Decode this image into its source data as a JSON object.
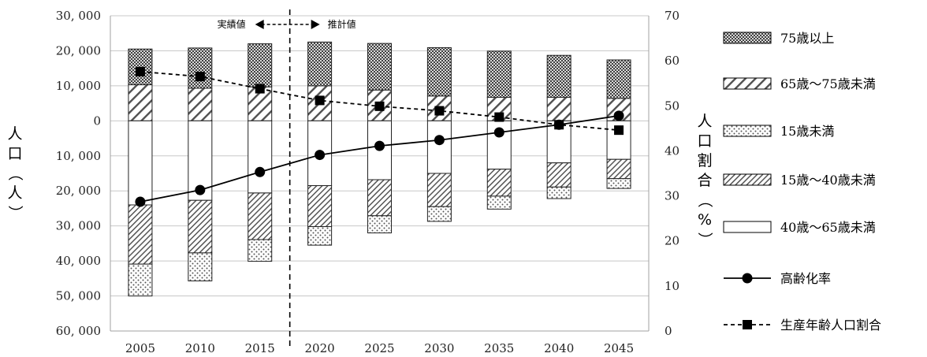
{
  "chart_data": {
    "type": "bar",
    "categories": [
      "2005",
      "2010",
      "2015",
      "2020",
      "2025",
      "2030",
      "2035",
      "2040",
      "2045"
    ],
    "left_axis": {
      "label": "人口（人）",
      "ticks": [
        {
          "value": 30000,
          "label": "30, 000"
        },
        {
          "value": 20000,
          "label": "20, 000"
        },
        {
          "value": 10000,
          "label": "10, 000"
        },
        {
          "value": 0,
          "label": "0"
        },
        {
          "value": -10000,
          "label": "10, 000"
        },
        {
          "value": -20000,
          "label": "20, 000"
        },
        {
          "value": -30000,
          "label": "30, 000"
        },
        {
          "value": -40000,
          "label": "40, 000"
        },
        {
          "value": -50000,
          "label": "50, 000"
        },
        {
          "value": -60000,
          "label": "60, 000"
        }
      ],
      "range": [
        -60000,
        30000
      ]
    },
    "right_axis": {
      "label": "人口割合（%）",
      "ticks": [
        0,
        10,
        20,
        30,
        40,
        50,
        60,
        70
      ],
      "range": [
        0,
        70
      ]
    },
    "grid": true,
    "divider": {
      "between": [
        "2015",
        "2020"
      ],
      "left_label": "実績値",
      "right_label": "推計値"
    },
    "stacks_up": [
      {
        "name": "65歳～75歳未満",
        "pattern": "hatch-wide",
        "values": [
          10300,
          9300,
          9700,
          10000,
          8800,
          7100,
          6700,
          6700,
          6400
        ]
      },
      {
        "name": "75歳以上",
        "pattern": "checker",
        "values": [
          10200,
          11500,
          12300,
          12500,
          13300,
          13800,
          13200,
          12000,
          11000
        ]
      }
    ],
    "stacks_down": [
      {
        "name": "40歳～65歳未満",
        "pattern": "white",
        "values": [
          24000,
          22700,
          20600,
          18500,
          16800,
          15000,
          13800,
          12000,
          11000
        ]
      },
      {
        "name": "15歳～40歳未満",
        "pattern": "hatch-dense",
        "values": [
          16900,
          15000,
          13300,
          11700,
          10300,
          9500,
          7700,
          6900,
          5500
        ]
      },
      {
        "name": "15歳未満",
        "pattern": "dots",
        "values": [
          9100,
          8000,
          6200,
          5300,
          4900,
          4200,
          3700,
          3300,
          2800
        ]
      }
    ],
    "lines": [
      {
        "name": "高齢化率",
        "style": "solid",
        "marker": "circle",
        "values": [
          28.7,
          31.3,
          35.3,
          39.1,
          41.1,
          42.4,
          44.1,
          45.8,
          47.8
        ]
      },
      {
        "name": "生産年齢人口割合",
        "style": "dashed",
        "marker": "square",
        "values": [
          57.6,
          56.5,
          53.8,
          51.2,
          49.9,
          48.9,
          47.5,
          45.8,
          44.6
        ]
      }
    ],
    "legend": {
      "placement": "right",
      "items": [
        {
          "label": "75歳以上",
          "kind": "swatch",
          "pattern": "checker"
        },
        {
          "label": "65歳～75歳未満",
          "kind": "swatch",
          "pattern": "hatch-wide"
        },
        {
          "label": "15歳未満",
          "kind": "swatch",
          "pattern": "dots"
        },
        {
          "label": "15歳～40歳未満",
          "kind": "swatch",
          "pattern": "hatch-dense"
        },
        {
          "label": "40歳～65歳未満",
          "kind": "swatch",
          "pattern": "white"
        },
        {
          "label": "高齢化率",
          "kind": "line",
          "style": "solid",
          "marker": "circle"
        },
        {
          "label": "生産年齢人口割合",
          "kind": "line",
          "style": "dashed",
          "marker": "square"
        }
      ]
    }
  }
}
